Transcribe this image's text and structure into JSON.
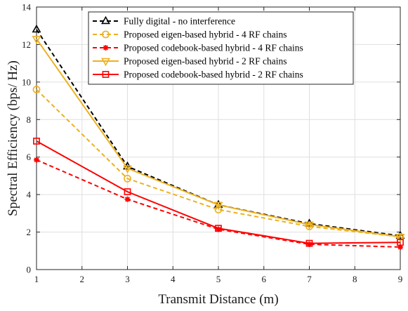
{
  "chart_data": {
    "type": "line",
    "xlabel": "Transmit Distance (m)",
    "ylabel": "Spectral Efficiency (bps/ Hz)",
    "xlim": [
      1,
      9
    ],
    "ylim": [
      0,
      14
    ],
    "xticks": [
      1,
      2,
      3,
      4,
      5,
      6,
      7,
      8,
      9
    ],
    "yticks": [
      0,
      2,
      4,
      6,
      8,
      10,
      12,
      14
    ],
    "grid": true,
    "legend_position": "top-center",
    "x": [
      1,
      3,
      5,
      7,
      9
    ],
    "series": [
      {
        "name": "Fully digital - no interference",
        "values": [
          12.8,
          5.5,
          3.45,
          2.45,
          1.8
        ],
        "color": "#000000",
        "dash": "dashed",
        "marker": "triangle-up"
      },
      {
        "name": "Proposed eigen-based hybrid - 4 RF chains",
        "values": [
          9.6,
          4.85,
          3.2,
          2.3,
          1.75
        ],
        "color": "#EDB120",
        "dash": "dashed",
        "marker": "circle"
      },
      {
        "name": "Proposed codebook-based hybrid - 4 RF chains",
        "values": [
          5.85,
          3.75,
          2.15,
          1.35,
          1.2
        ],
        "color": "#FF0000",
        "dash": "dashed",
        "marker": "asterisk"
      },
      {
        "name": "Proposed eigen-based hybrid - 2 RF chains",
        "values": [
          12.3,
          5.4,
          3.45,
          2.4,
          1.75
        ],
        "color": "#EDB120",
        "dash": "solid",
        "marker": "triangle-down"
      },
      {
        "name": "Proposed codebook-based hybrid - 2 RF chains",
        "values": [
          6.85,
          4.15,
          2.2,
          1.4,
          1.45
        ],
        "color": "#FF0000",
        "dash": "solid",
        "marker": "square"
      }
    ]
  }
}
